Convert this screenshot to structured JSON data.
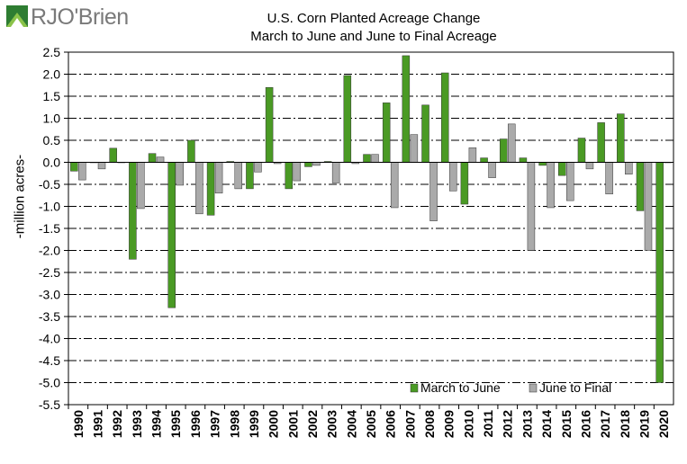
{
  "logo": {
    "text": "RJO'Brien"
  },
  "chart_data": {
    "type": "bar",
    "title": "U.S. Corn Planted Acreage Change",
    "subtitle": "March to June and June to Final Acreage",
    "xlabel": "",
    "ylabel": "-million acres-",
    "ylim": [
      -5.5,
      2.5
    ],
    "yticks": [
      2.5,
      2.0,
      1.5,
      1.0,
      0.5,
      0.0,
      -0.5,
      -1.0,
      -1.5,
      -2.0,
      -2.5,
      -3.0,
      -3.5,
      -4.0,
      -4.5,
      -5.0,
      -5.5
    ],
    "ytick_labels": [
      "2.5",
      "2.0",
      "1.5",
      "1.0",
      "0.5",
      "0.0",
      "-0.5",
      "-1.0",
      "-1.5",
      "-2.0",
      "-2.5",
      "-3.0",
      "-3.5",
      "-4.0",
      "-4.5",
      "-5.0",
      "-5.5"
    ],
    "grid": true,
    "legend_position": "bottom-right",
    "categories": [
      "1990",
      "1991",
      "1992",
      "1993",
      "1994",
      "1995",
      "1996",
      "1997",
      "1998",
      "1999",
      "2000",
      "2001",
      "2002",
      "2003",
      "2004",
      "2005",
      "2006",
      "2007",
      "2008",
      "2009",
      "2010",
      "2011",
      "2012",
      "2013",
      "2014",
      "2015",
      "2016",
      "2017",
      "2018",
      "2019",
      "2020"
    ],
    "series": [
      {
        "name": "March to June",
        "color": "#4a9a24",
        "values": [
          -0.2,
          0.0,
          0.32,
          -2.2,
          0.2,
          -3.3,
          0.5,
          -1.2,
          0.02,
          -0.6,
          1.7,
          -0.6,
          -0.1,
          0.02,
          1.97,
          0.18,
          1.35,
          2.42,
          1.3,
          2.03,
          -0.95,
          0.1,
          0.53,
          0.1,
          -0.07,
          -0.3,
          0.55,
          0.9,
          1.1,
          -1.1,
          -5.0
        ]
      },
      {
        "name": "June to Final",
        "color": "#aaaaaa",
        "values": [
          -0.4,
          -0.15,
          0.0,
          -1.05,
          0.12,
          -0.52,
          -1.17,
          -0.7,
          -0.6,
          -0.22,
          -0.03,
          -0.42,
          -0.07,
          -0.47,
          -0.03,
          0.18,
          -1.03,
          0.63,
          -1.33,
          -0.65,
          0.33,
          -0.35,
          0.87,
          -2.0,
          -1.03,
          -0.87,
          -0.15,
          -0.72,
          -0.27,
          -2.0,
          0.0
        ]
      }
    ]
  }
}
